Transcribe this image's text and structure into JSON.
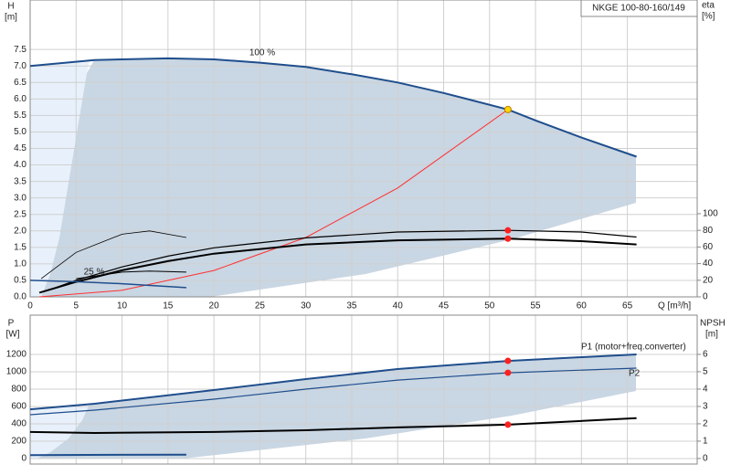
{
  "chart_data": [
    {
      "type": "line",
      "title": "NKGE 100-80-160/149",
      "ylabel": "H",
      "yunit": "[m]",
      "y2label": "eta",
      "y2unit": "[%]",
      "xlabel": "Q [m³/h]",
      "xlim": [
        0,
        72.6
      ],
      "ylim": [
        0,
        9
      ],
      "y2lim": [
        0,
        357
      ],
      "xticks": [
        0,
        5,
        10,
        15,
        20,
        25,
        30,
        35,
        40,
        45,
        50,
        55,
        60,
        65
      ],
      "yticks": [
        {
          "value": 0,
          "label": "0.0"
        },
        0.5,
        {
          "value": 1,
          "label": "1.0"
        },
        1.5,
        {
          "value": 2,
          "label": "2.0"
        },
        2.5,
        {
          "value": 3,
          "label": "3.0"
        },
        3.5,
        {
          "value": 4,
          "label": "4.0"
        },
        4.5,
        {
          "value": 5,
          "label": "5.0"
        },
        5.5,
        {
          "value": 6,
          "label": "6.0"
        },
        6.5,
        {
          "value": 7,
          "label": "7.0"
        },
        7.5
      ],
      "y2ticks": [
        0,
        20,
        40,
        60,
        80,
        100
      ],
      "grid": true,
      "annotations": [
        "100 %",
        "25 %"
      ],
      "series": [
        {
          "color": "#1f4e8c",
          "x": [
            0,
            7,
            15,
            20,
            25,
            30,
            35,
            40,
            45,
            52,
            55,
            60,
            66
          ],
          "values": [
            7.0,
            7.18,
            7.23,
            7.2,
            7.1,
            6.97,
            6.75,
            6.5,
            6.18,
            5.68,
            5.35,
            4.83,
            4.25
          ]
        },
        {
          "color": "#ff3030",
          "x": [
            1,
            10,
            20,
            30,
            40,
            52
          ],
          "values": [
            0,
            0.2,
            0.8,
            1.8,
            3.3,
            5.68
          ]
        },
        {
          "color": "#000000",
          "axis": "y2",
          "x": [
            2,
            5,
            10,
            15,
            20,
            30,
            40,
            52,
            60,
            66
          ],
          "values": [
            8,
            20,
            36,
            49,
            59,
            71,
            78,
            80,
            78,
            72
          ]
        },
        {
          "color": "#000000",
          "axis": "y2",
          "x": [
            1,
            5,
            10,
            15,
            20,
            30,
            40,
            52,
            60,
            66
          ],
          "values": [
            5,
            18,
            32,
            43,
            52,
            63,
            68,
            70,
            67,
            63
          ]
        },
        {
          "color": "#1f4e8c",
          "x": [
            0,
            5,
            10,
            17
          ],
          "values": [
            0.5,
            0.46,
            0.4,
            0.28
          ]
        },
        {
          "color": "#000000",
          "x": [
            1.2,
            5,
            10,
            13,
            17
          ],
          "values": [
            0.55,
            1.35,
            1.9,
            2.0,
            1.8
          ]
        },
        {
          "color": "#000000",
          "x": [
            5,
            10,
            13,
            17
          ],
          "values": [
            0.55,
            0.75,
            0.78,
            0.75
          ]
        }
      ],
      "points": [
        {
          "x": 52,
          "value": 5.68,
          "color": "#ffd700"
        },
        {
          "x": 52,
          "value": 80,
          "axis": "y2",
          "color": "#ff2020"
        },
        {
          "x": 52,
          "value": 70,
          "axis": "y2",
          "color": "#ff2020"
        }
      ]
    },
    {
      "type": "line",
      "ylabel": "P",
      "yunit": "[W]",
      "y2label": "NPSH",
      "y2unit": "[m]",
      "xlim": [
        0,
        72.6
      ],
      "ylim": [
        -63,
        1653
      ],
      "y2lim": [
        -0.32,
        8.26
      ],
      "xticks": [
        0,
        5,
        10,
        15,
        20,
        25,
        30,
        35,
        40,
        45,
        50,
        55,
        60,
        65
      ],
      "yticks": [
        0,
        200,
        400,
        600,
        800,
        1000,
        1200
      ],
      "y2ticks": [
        0,
        1,
        2,
        3,
        4,
        5,
        6
      ],
      "grid": true,
      "annotations": [
        "P1 (motor+freq.converter)",
        "P2"
      ],
      "series": [
        {
          "color": "#1f4e8c",
          "x": [
            0,
            7,
            20,
            30,
            40,
            52,
            66
          ],
          "values": [
            568,
            632,
            790,
            916,
            1032,
            1126,
            1200
          ]
        },
        {
          "color": "#1f4e8c",
          "x": [
            0,
            7,
            20,
            30,
            40,
            52,
            66
          ],
          "values": [
            505,
            558,
            684,
            800,
            905,
            989,
            1042
          ]
        },
        {
          "color": "#000000",
          "axis": "y2",
          "x": [
            0,
            7,
            20,
            30,
            40,
            52,
            66
          ],
          "values": [
            1.53,
            1.47,
            1.53,
            1.63,
            1.79,
            1.95,
            2.32
          ]
        },
        {
          "color": "#1f4e8c",
          "x": [
            0,
            17
          ],
          "values": [
            40,
            45
          ]
        }
      ],
      "points": [
        {
          "x": 52,
          "value": 1126,
          "color": "#ff2020"
        },
        {
          "x": 52,
          "value": 989,
          "color": "#ff2020"
        },
        {
          "x": 52,
          "value": 1.95,
          "axis": "y2",
          "color": "#ff2020"
        }
      ]
    }
  ]
}
